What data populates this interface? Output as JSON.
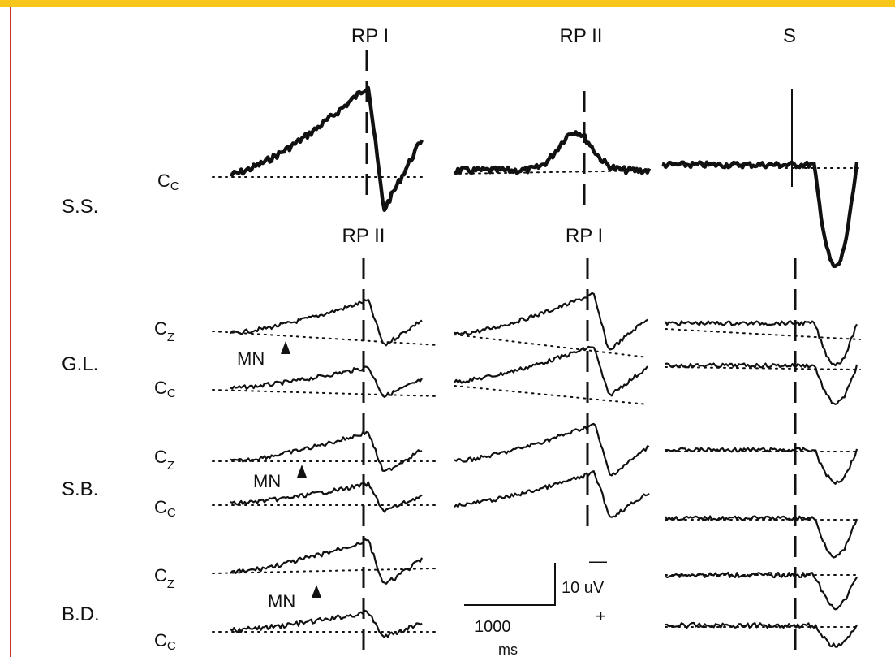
{
  "colors": {
    "accent_bar": "#f7c61b",
    "left_rule": "#c9302c",
    "ink": "#111111"
  },
  "header_labels": {
    "rp1_top": "RP I",
    "rp2_top": "RP II",
    "s_top": "S",
    "rp2_mid": "RP II",
    "rp1_mid": "RP I"
  },
  "subjects": [
    {
      "id": "ss",
      "label": "S.S.",
      "channels": [
        {
          "name": "C",
          "sub": "C"
        }
      ]
    },
    {
      "id": "gl",
      "label": "G.L.",
      "channels": [
        {
          "name": "C",
          "sub": "Z"
        },
        {
          "name": "C",
          "sub": "C"
        }
      ],
      "marker": "MN"
    },
    {
      "id": "sb",
      "label": "S.B.",
      "channels": [
        {
          "name": "C",
          "sub": "Z"
        },
        {
          "name": "C",
          "sub": "C"
        }
      ],
      "marker": "MN"
    },
    {
      "id": "bd",
      "label": "B.D.",
      "channels": [
        {
          "name": "C",
          "sub": "Z"
        },
        {
          "name": "C",
          "sub": "C"
        }
      ],
      "marker": "MN"
    }
  ],
  "scale_bar": {
    "voltage": "10 uV",
    "time_value": "1000",
    "time_unit": "ms",
    "minus": "—",
    "plus": "+"
  },
  "chart_data": {
    "type": "line",
    "panels": [
      "RP I",
      "RP II",
      "S"
    ],
    "traces": [
      {
        "subject": "S.S.",
        "channel": "Cc",
        "panel": "RP I",
        "shape": "rise"
      },
      {
        "subject": "S.S.",
        "channel": "Cc",
        "panel": "RP II",
        "shape": "hump"
      },
      {
        "subject": "S.S.",
        "channel": "Cc",
        "panel": "S",
        "shape": "flat-dip"
      },
      {
        "subject": "G.L.",
        "channel": "Cz",
        "panel": "RP II",
        "shape": "rise"
      },
      {
        "subject": "G.L.",
        "channel": "Cz",
        "panel": "RP I",
        "shape": "rise"
      },
      {
        "subject": "G.L.",
        "channel": "Cz",
        "panel": "S",
        "shape": "flat-dip"
      },
      {
        "subject": "G.L.",
        "channel": "Cc",
        "panel": "RP II",
        "shape": "rise"
      },
      {
        "subject": "G.L.",
        "channel": "Cc",
        "panel": "RP I",
        "shape": "rise"
      },
      {
        "subject": "G.L.",
        "channel": "Cc",
        "panel": "S",
        "shape": "flat-dip"
      },
      {
        "subject": "S.B.",
        "channel": "Cz",
        "panel": "RP II",
        "shape": "rise"
      },
      {
        "subject": "S.B.",
        "channel": "Cz",
        "panel": "RP I",
        "shape": "rise"
      },
      {
        "subject": "S.B.",
        "channel": "Cz",
        "panel": "S",
        "shape": "flat-dip"
      },
      {
        "subject": "S.B.",
        "channel": "Cc",
        "panel": "RP II",
        "shape": "rise"
      },
      {
        "subject": "S.B.",
        "channel": "Cc",
        "panel": "RP I",
        "shape": "rise"
      },
      {
        "subject": "S.B.",
        "channel": "Cc",
        "panel": "S",
        "shape": "flat-dip"
      },
      {
        "subject": "B.D.",
        "channel": "Cz",
        "panel": "RP II",
        "shape": "rise"
      },
      {
        "subject": "B.D.",
        "channel": "Cz",
        "panel": "S",
        "shape": "flat-dip"
      },
      {
        "subject": "B.D.",
        "channel": "Cc",
        "panel": "RP II",
        "shape": "rise"
      },
      {
        "subject": "B.D.",
        "channel": "Cc",
        "panel": "S",
        "shape": "flat-dip"
      }
    ],
    "scale": {
      "voltage_uV": 10,
      "time_ms": 1000
    }
  }
}
